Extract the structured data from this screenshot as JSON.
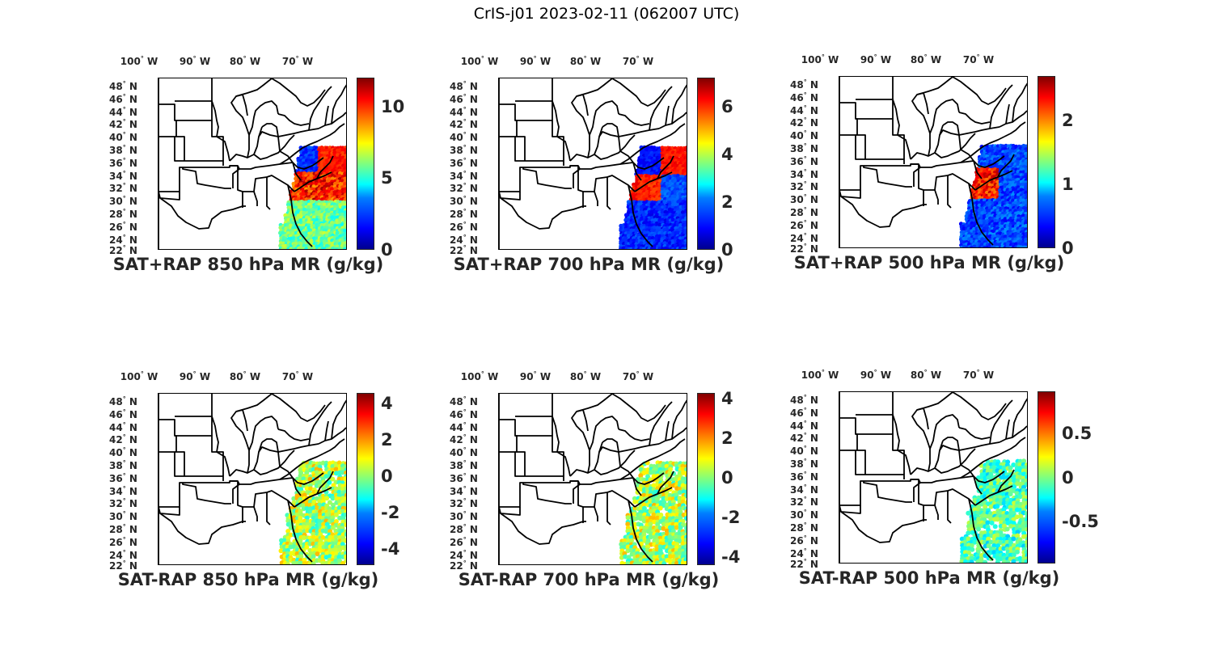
{
  "figure": {
    "title": "CrIS-j01 2023-02-11 (062007 UTC)",
    "lon_labels": [
      "100",
      "90",
      "80",
      "70"
    ],
    "lon_hemisphere": "W",
    "lat_labels": [
      "48",
      "46",
      "44",
      "42",
      "40",
      "38",
      "36",
      "34",
      "32",
      "30",
      "28",
      "26",
      "24",
      "22"
    ],
    "lat_hemisphere": "N",
    "degree_symbol": "°",
    "colormap": "jet"
  },
  "panels": [
    {
      "title": "SAT+RAP 850 hPa MR (g/kg)",
      "cbar_min": 0,
      "cbar_max": 12,
      "cbar_ticks": [
        "0",
        "5",
        "10"
      ],
      "cbar_tick_values": [
        0,
        5,
        10
      ],
      "kind": "sum",
      "level": "850"
    },
    {
      "title": "SAT+RAP 700 hPa MR (g/kg)",
      "cbar_min": 0,
      "cbar_max": 7.2,
      "cbar_ticks": [
        "0",
        "2",
        "4",
        "6"
      ],
      "cbar_tick_values": [
        0,
        2,
        4,
        6
      ],
      "kind": "sum",
      "level": "700"
    },
    {
      "title": "SAT+RAP 500 hPa MR (g/kg)",
      "cbar_min": 0,
      "cbar_max": 2.7,
      "cbar_ticks": [
        "0",
        "1",
        "2"
      ],
      "cbar_tick_values": [
        0,
        1,
        2
      ],
      "kind": "sum",
      "level": "500"
    },
    {
      "title": "SAT-RAP 850 hPa MR (g/kg)",
      "cbar_min": -4.9,
      "cbar_max": 4.6,
      "cbar_ticks": [
        "-4",
        "-2",
        "0",
        "2",
        "4"
      ],
      "cbar_tick_values": [
        -4,
        -2,
        0,
        2,
        4
      ],
      "kind": "diff",
      "level": "850"
    },
    {
      "title": "SAT-RAP 700 hPa MR (g/kg)",
      "cbar_min": -4.4,
      "cbar_max": 4.3,
      "cbar_ticks": [
        "-4",
        "-2",
        "0",
        "2",
        "4"
      ],
      "cbar_tick_values": [
        -4,
        -2,
        0,
        2,
        4
      ],
      "kind": "diff",
      "level": "700"
    },
    {
      "title": "SAT-RAP 500 hPa MR (g/kg)",
      "cbar_min": -0.98,
      "cbar_max": 0.98,
      "cbar_ticks": [
        "-0.5",
        "0",
        "0.5"
      ],
      "cbar_tick_values": [
        -0.5,
        0,
        0.5
      ],
      "kind": "diff",
      "level": "500"
    }
  ]
}
